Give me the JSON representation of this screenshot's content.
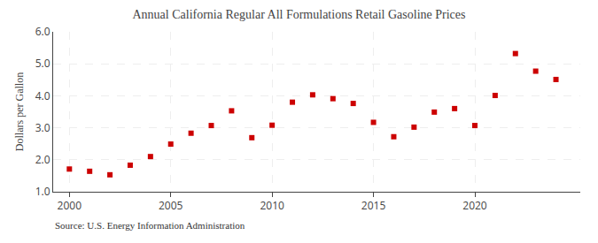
{
  "chart_data": {
    "type": "scatter",
    "title": "Annual California Regular All Formulations Retail Gasoline Prices",
    "ylabel": "Dollars per Gallon",
    "annotations": [
      "Source: U.S. Energy Information Administration"
    ],
    "x": [
      2000,
      2001,
      2002,
      2003,
      2004,
      2005,
      2006,
      2007,
      2008,
      2009,
      2010,
      2011,
      2012,
      2013,
      2014,
      2015,
      2016,
      2017,
      2018,
      2019,
      2020,
      2021,
      2022,
      2023,
      2024
    ],
    "values": [
      1.71,
      1.64,
      1.53,
      1.83,
      2.1,
      2.49,
      2.83,
      3.07,
      3.53,
      2.69,
      3.08,
      3.8,
      4.03,
      3.91,
      3.76,
      3.17,
      2.72,
      3.02,
      3.49,
      3.6,
      3.07,
      4.01,
      5.32,
      4.77,
      4.51
    ],
    "color": "#cc0000",
    "marker": "square",
    "xlim": [
      1999.2,
      2025.2
    ],
    "ylim": [
      1.0,
      6.0
    ],
    "xticks": [
      2000,
      2005,
      2010,
      2015,
      2020
    ],
    "yticks": [
      {
        "value": 1.0,
        "label": "1.0"
      },
      {
        "value": 2.0,
        "label": "2.0"
      },
      {
        "value": 3.0,
        "label": "3.0"
      },
      {
        "value": 4.0,
        "label": "4.0"
      },
      {
        "value": 5.0,
        "label": "5.0"
      },
      {
        "value": 6.0,
        "label": "6.0"
      }
    ],
    "grid": true
  }
}
